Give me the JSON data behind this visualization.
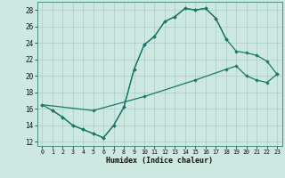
{
  "xlabel": "Humidex (Indice chaleur)",
  "xlim": [
    -0.5,
    23.5
  ],
  "ylim": [
    11.5,
    29.0
  ],
  "xticks": [
    0,
    1,
    2,
    3,
    4,
    5,
    6,
    7,
    8,
    9,
    10,
    11,
    12,
    13,
    14,
    15,
    16,
    17,
    18,
    19,
    20,
    21,
    22,
    23
  ],
  "yticks": [
    12,
    14,
    16,
    18,
    20,
    22,
    24,
    26,
    28
  ],
  "bg_color": "#cce8e0",
  "grid_color": "#aacccc",
  "line_color": "#1a7868",
  "line1_x": [
    0,
    1,
    2,
    3,
    4,
    5,
    6,
    7,
    8,
    9,
    10,
    11,
    12,
    13,
    14,
    15,
    16,
    17,
    18
  ],
  "line1_y": [
    16.5,
    15.8,
    15.0,
    14.0,
    13.5,
    13.0,
    12.5,
    14.0,
    16.2,
    20.8,
    23.8,
    24.8,
    26.6,
    27.2,
    28.2,
    28.0,
    28.2,
    27.0,
    24.5
  ],
  "line2_x": [
    1,
    2,
    3,
    4,
    5,
    6,
    7,
    8,
    9,
    10,
    11,
    12,
    13,
    14,
    15,
    16,
    17,
    18,
    19,
    20,
    21,
    22,
    23
  ],
  "line2_y": [
    15.8,
    15.0,
    14.0,
    13.5,
    13.0,
    12.5,
    14.0,
    16.2,
    20.8,
    23.8,
    24.8,
    26.6,
    27.2,
    28.2,
    28.0,
    28.2,
    27.0,
    24.5,
    23.0,
    22.8,
    22.5,
    21.8,
    20.2
  ],
  "line3_x": [
    0,
    5,
    10,
    15,
    18,
    19,
    20,
    21,
    22,
    23
  ],
  "line3_y": [
    16.5,
    15.8,
    17.5,
    19.5,
    20.8,
    21.2,
    20.0,
    19.5,
    19.2,
    20.2
  ]
}
